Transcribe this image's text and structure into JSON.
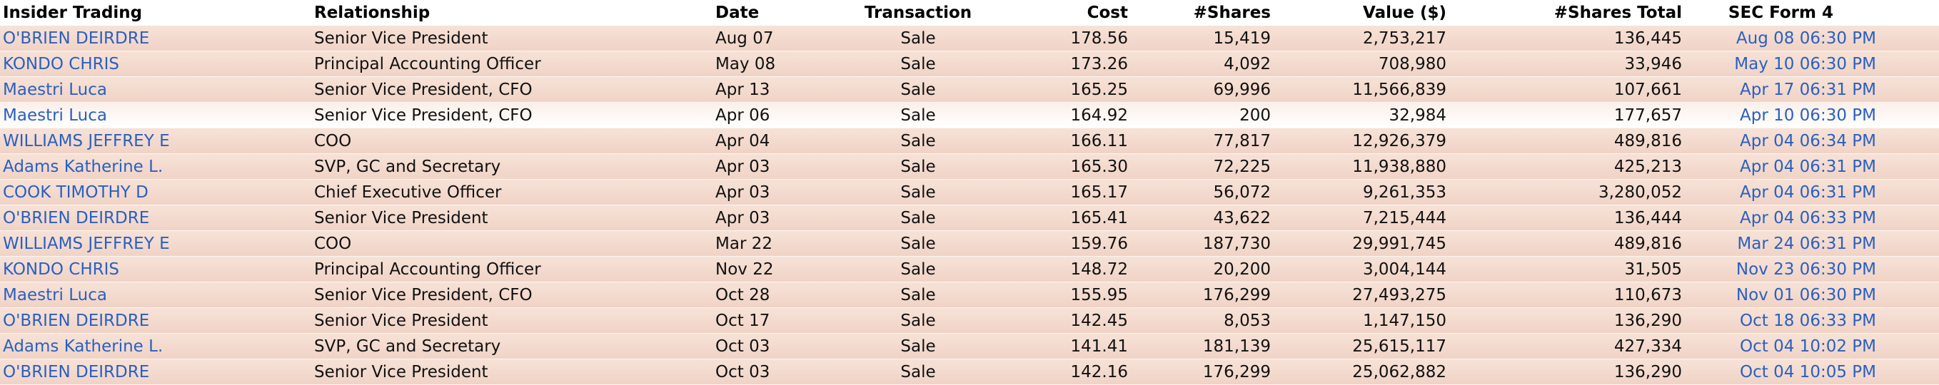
{
  "headers": {
    "insider": "Insider Trading",
    "relationship": "Relationship",
    "date": "Date",
    "transaction": "Transaction",
    "cost": "Cost",
    "shares": "#Shares",
    "value": "Value ($)",
    "shares_total": "#Shares Total",
    "sec_form": "SEC Form 4"
  },
  "rows": [
    {
      "insider": "O'BRIEN DEIRDRE",
      "relationship": "Senior Vice President",
      "date": "Aug 07",
      "transaction": "Sale",
      "cost": "178.56",
      "shares": "15,419",
      "value": "2,753,217",
      "shares_total": "136,445",
      "sec_form": "Aug 08 06:30 PM"
    },
    {
      "insider": "KONDO CHRIS",
      "relationship": "Principal Accounting Officer",
      "date": "May 08",
      "transaction": "Sale",
      "cost": "173.26",
      "shares": "4,092",
      "value": "708,980",
      "shares_total": "33,946",
      "sec_form": "May 10 06:30 PM"
    },
    {
      "insider": "Maestri Luca",
      "relationship": "Senior Vice President, CFO",
      "date": "Apr 13",
      "transaction": "Sale",
      "cost": "165.25",
      "shares": "69,996",
      "value": "11,566,839",
      "shares_total": "107,661",
      "sec_form": "Apr 17 06:31 PM"
    },
    {
      "insider": "Maestri Luca",
      "relationship": "Senior Vice President, CFO",
      "date": "Apr 06",
      "transaction": "Sale",
      "cost": "164.92",
      "shares": "200",
      "value": "32,984",
      "shares_total": "177,657",
      "sec_form": "Apr 10 06:30 PM"
    },
    {
      "insider": "WILLIAMS JEFFREY E",
      "relationship": "COO",
      "date": "Apr 04",
      "transaction": "Sale",
      "cost": "166.11",
      "shares": "77,817",
      "value": "12,926,379",
      "shares_total": "489,816",
      "sec_form": "Apr 04 06:34 PM"
    },
    {
      "insider": "Adams Katherine L.",
      "relationship": "SVP, GC and Secretary",
      "date": "Apr 03",
      "transaction": "Sale",
      "cost": "165.30",
      "shares": "72,225",
      "value": "11,938,880",
      "shares_total": "425,213",
      "sec_form": "Apr 04 06:31 PM"
    },
    {
      "insider": "COOK TIMOTHY D",
      "relationship": "Chief Executive Officer",
      "date": "Apr 03",
      "transaction": "Sale",
      "cost": "165.17",
      "shares": "56,072",
      "value": "9,261,353",
      "shares_total": "3,280,052",
      "sec_form": "Apr 04 06:31 PM"
    },
    {
      "insider": "O'BRIEN DEIRDRE",
      "relationship": "Senior Vice President",
      "date": "Apr 03",
      "transaction": "Sale",
      "cost": "165.41",
      "shares": "43,622",
      "value": "7,215,444",
      "shares_total": "136,444",
      "sec_form": "Apr 04 06:33 PM"
    },
    {
      "insider": "WILLIAMS JEFFREY E",
      "relationship": "COO",
      "date": "Mar 22",
      "transaction": "Sale",
      "cost": "159.76",
      "shares": "187,730",
      "value": "29,991,745",
      "shares_total": "489,816",
      "sec_form": "Mar 24 06:31 PM"
    },
    {
      "insider": "KONDO CHRIS",
      "relationship": "Principal Accounting Officer",
      "date": "Nov 22",
      "transaction": "Sale",
      "cost": "148.72",
      "shares": "20,200",
      "value": "3,004,144",
      "shares_total": "31,505",
      "sec_form": "Nov 23 06:30 PM"
    },
    {
      "insider": "Maestri Luca",
      "relationship": "Senior Vice President, CFO",
      "date": "Oct 28",
      "transaction": "Sale",
      "cost": "155.95",
      "shares": "176,299",
      "value": "27,493,275",
      "shares_total": "110,673",
      "sec_form": "Nov 01 06:30 PM"
    },
    {
      "insider": "O'BRIEN DEIRDRE",
      "relationship": "Senior Vice President",
      "date": "Oct 17",
      "transaction": "Sale",
      "cost": "142.45",
      "shares": "8,053",
      "value": "1,147,150",
      "shares_total": "136,290",
      "sec_form": "Oct 18 06:33 PM"
    },
    {
      "insider": "Adams Katherine L.",
      "relationship": "SVP, GC and Secretary",
      "date": "Oct 03",
      "transaction": "Sale",
      "cost": "141.41",
      "shares": "181,139",
      "value": "25,615,117",
      "shares_total": "427,334",
      "sec_form": "Oct 04 10:02 PM"
    },
    {
      "insider": "O'BRIEN DEIRDRE",
      "relationship": "Senior Vice President",
      "date": "Oct 03",
      "transaction": "Sale",
      "cost": "142.16",
      "shares": "176,299",
      "value": "25,062,882",
      "shares_total": "136,290",
      "sec_form": "Oct 04 10:05 PM"
    }
  ],
  "colors": {
    "row_bg": "#f3d8cb",
    "link": "#2a60c0",
    "header_text": "#000000"
  }
}
